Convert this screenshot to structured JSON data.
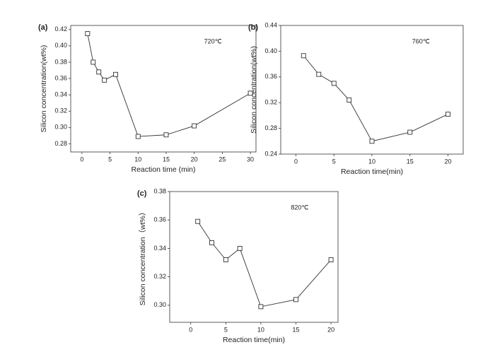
{
  "chart_data": [
    {
      "type": "line",
      "panel_label": "(a)",
      "annotation": "720℃",
      "x_label": "Reaction time (min)",
      "y_label": "Silicon concentration(wt%)",
      "x": [
        1,
        2,
        3,
        4,
        6,
        10,
        15,
        20,
        30
      ],
      "values": [
        0.415,
        0.38,
        0.368,
        0.358,
        0.365,
        0.289,
        0.291,
        0.302,
        0.342
      ],
      "color": "#333333",
      "marker": "square",
      "xlim": [
        -2,
        31
      ],
      "xticks": [
        0,
        5,
        10,
        15,
        20,
        25,
        30
      ],
      "ylim": [
        0.27,
        0.425
      ],
      "yticks": [
        {
          "value": 0.28,
          "label": "0.28"
        },
        {
          "value": 0.3,
          "label": "0.30"
        },
        0.32,
        0.34,
        0.36,
        0.38,
        {
          "value": 0.4,
          "label": "0.40"
        },
        0.42
      ]
    },
    {
      "type": "line",
      "panel_label": "(b)",
      "annotation": "760℃",
      "x_label": "Reaction time(min)",
      "y_label": "Silicon concentration(wt%)",
      "x": [
        1,
        3,
        5,
        7,
        10,
        15,
        20
      ],
      "values": [
        0.393,
        0.364,
        0.35,
        0.324,
        0.26,
        0.274,
        0.302
      ],
      "color": "#333333",
      "marker": "square",
      "xlim": [
        -2,
        22
      ],
      "xticks": [
        0,
        5,
        10,
        15,
        20
      ],
      "ylim": [
        0.24,
        0.44
      ],
      "yticks": [
        0.24,
        0.28,
        0.32,
        0.36,
        {
          "value": 0.4,
          "label": "0.40"
        },
        0.44
      ]
    },
    {
      "type": "line",
      "panel_label": "(c)",
      "annotation": "820℃",
      "x_label": "Reaction time(min)",
      "y_label": "Silicon concentration（wt%）",
      "x": [
        1,
        3,
        5,
        7,
        10,
        15,
        20
      ],
      "values": [
        0.359,
        0.344,
        0.332,
        0.34,
        0.299,
        0.304,
        0.332
      ],
      "color": "#333333",
      "marker": "square",
      "xlim": [
        -3,
        21
      ],
      "xticks": [
        0,
        5,
        10,
        15,
        20
      ],
      "ylim": [
        0.288,
        0.38
      ],
      "yticks": [
        {
          "value": 0.3,
          "label": "0.30"
        },
        0.32,
        0.34,
        0.36,
        0.38
      ]
    }
  ]
}
